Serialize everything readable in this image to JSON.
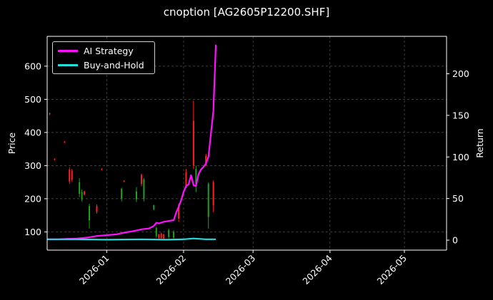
{
  "chart_data": {
    "type": "line",
    "title": "cnoption [AG2605P12200.SHF]",
    "ylabel": "Price",
    "y2label": "Return",
    "xlim": [
      "2025-12-08",
      "2026-05-18"
    ],
    "ylim": [
      45,
      690
    ],
    "y2lim": [
      -12,
      245
    ],
    "x_ticks": [
      "2026-01",
      "2026-02",
      "2026-03",
      "2026-04",
      "2026-05"
    ],
    "y_ticks": [
      100,
      200,
      300,
      400,
      500,
      600
    ],
    "y2_ticks": [
      0,
      50,
      100,
      150,
      200
    ],
    "grid": true,
    "legend_position": "top-left",
    "series": [
      {
        "name": "AI Strategy",
        "color": "#ff10ff",
        "axis": "right",
        "x": [
          "2025-12-08",
          "2025-12-12",
          "2025-12-16",
          "2025-12-20",
          "2025-12-24",
          "2025-12-28",
          "2026-01-01",
          "2026-01-05",
          "2026-01-08",
          "2026-01-12",
          "2026-01-15",
          "2026-01-18",
          "2026-01-20",
          "2026-01-21",
          "2026-01-22",
          "2026-01-24",
          "2026-01-26",
          "2026-01-28",
          "2026-01-29",
          "2026-01-30",
          "2026-01-31",
          "2026-02-01",
          "2026-02-02",
          "2026-02-03",
          "2026-02-04",
          "2026-02-05",
          "2026-02-06",
          "2026-02-07",
          "2026-02-08",
          "2026-02-09",
          "2026-02-10",
          "2026-02-11",
          "2026-02-12",
          "2026-02-13",
          "2026-02-14"
        ],
        "values": [
          1,
          1,
          1.5,
          2,
          3,
          5,
          6,
          7,
          9,
          11,
          13,
          14,
          17,
          21,
          20,
          22,
          23,
          24,
          33,
          40,
          48,
          58,
          65,
          67,
          78,
          66,
          65,
          79,
          85,
          88,
          92,
          100,
          128,
          155,
          235
        ]
      },
      {
        "name": "Buy-and-Hold",
        "color": "#22dddd",
        "axis": "right",
        "x": [
          "2025-12-08",
          "2025-12-20",
          "2026-01-01",
          "2026-01-15",
          "2026-01-25",
          "2026-02-01",
          "2026-02-05",
          "2026-02-10",
          "2026-02-14"
        ],
        "values": [
          1,
          1,
          0.5,
          1,
          0.5,
          1,
          2,
          1,
          1
        ]
      }
    ],
    "candles": {
      "axis": "left",
      "up_color": "#ff2020",
      "down_color": "#20a020",
      "items": [
        {
          "x": "2025-12-09",
          "open": 455,
          "close": 458,
          "high": 460,
          "low": 452
        },
        {
          "x": "2025-12-11",
          "open": 318,
          "close": 320,
          "high": 322,
          "low": 316
        },
        {
          "x": "2025-12-15",
          "open": 370,
          "close": 372,
          "high": 374,
          "low": 368
        },
        {
          "x": "2025-12-17",
          "open": 252,
          "close": 288,
          "high": 295,
          "low": 245
        },
        {
          "x": "2025-12-18",
          "open": 258,
          "close": 285,
          "high": 290,
          "low": 252
        },
        {
          "x": "2025-12-21",
          "open": 250,
          "close": 215,
          "high": 262,
          "low": 205
        },
        {
          "x": "2025-12-22",
          "open": 220,
          "close": 198,
          "high": 228,
          "low": 192
        },
        {
          "x": "2025-12-23",
          "open": 213,
          "close": 222,
          "high": 224,
          "low": 210
        },
        {
          "x": "2025-12-25",
          "open": 178,
          "close": 135,
          "high": 185,
          "low": 110
        },
        {
          "x": "2025-12-28",
          "open": 160,
          "close": 178,
          "high": 183,
          "low": 155
        },
        {
          "x": "2025-12-30",
          "open": 288,
          "close": 290,
          "high": 292,
          "low": 286
        },
        {
          "x": "2026-01-07",
          "open": 230,
          "close": 200,
          "high": 233,
          "low": 192
        },
        {
          "x": "2026-01-08",
          "open": 252,
          "close": 254,
          "high": 256,
          "low": 250
        },
        {
          "x": "2026-01-13",
          "open": 222,
          "close": 198,
          "high": 235,
          "low": 190
        },
        {
          "x": "2026-01-15",
          "open": 245,
          "close": 272,
          "high": 276,
          "low": 238
        },
        {
          "x": "2026-01-16",
          "open": 258,
          "close": 200,
          "high": 262,
          "low": 192
        },
        {
          "x": "2026-01-20",
          "open": 180,
          "close": 168,
          "high": 182,
          "low": 165
        },
        {
          "x": "2026-01-21",
          "open": 112,
          "close": 88,
          "high": 115,
          "low": 82
        },
        {
          "x": "2026-01-22",
          "open": 82,
          "close": 92,
          "high": 95,
          "low": 78
        },
        {
          "x": "2026-01-23",
          "open": 82,
          "close": 95,
          "high": 98,
          "low": 78
        },
        {
          "x": "2026-01-24",
          "open": 80,
          "close": 92,
          "high": 95,
          "low": 78
        },
        {
          "x": "2026-01-26",
          "open": 105,
          "close": 85,
          "high": 110,
          "low": 80
        },
        {
          "x": "2026-01-28",
          "open": 100,
          "close": 82,
          "high": 105,
          "low": 80
        },
        {
          "x": "2026-01-30",
          "open": 140,
          "close": 180,
          "high": 185,
          "low": 130
        },
        {
          "x": "2026-02-02",
          "open": 240,
          "close": 280,
          "high": 290,
          "low": 232
        },
        {
          "x": "2026-02-05",
          "open": 300,
          "close": 435,
          "high": 495,
          "low": 290
        },
        {
          "x": "2026-02-06",
          "open": 290,
          "close": 240,
          "high": 300,
          "low": 220
        },
        {
          "x": "2026-02-10",
          "open": 300,
          "close": 330,
          "high": 335,
          "low": 300
        },
        {
          "x": "2026-02-11",
          "open": 245,
          "close": 145,
          "high": 250,
          "low": 110
        },
        {
          "x": "2026-02-13",
          "open": 180,
          "close": 250,
          "high": 255,
          "low": 160
        }
      ]
    }
  }
}
